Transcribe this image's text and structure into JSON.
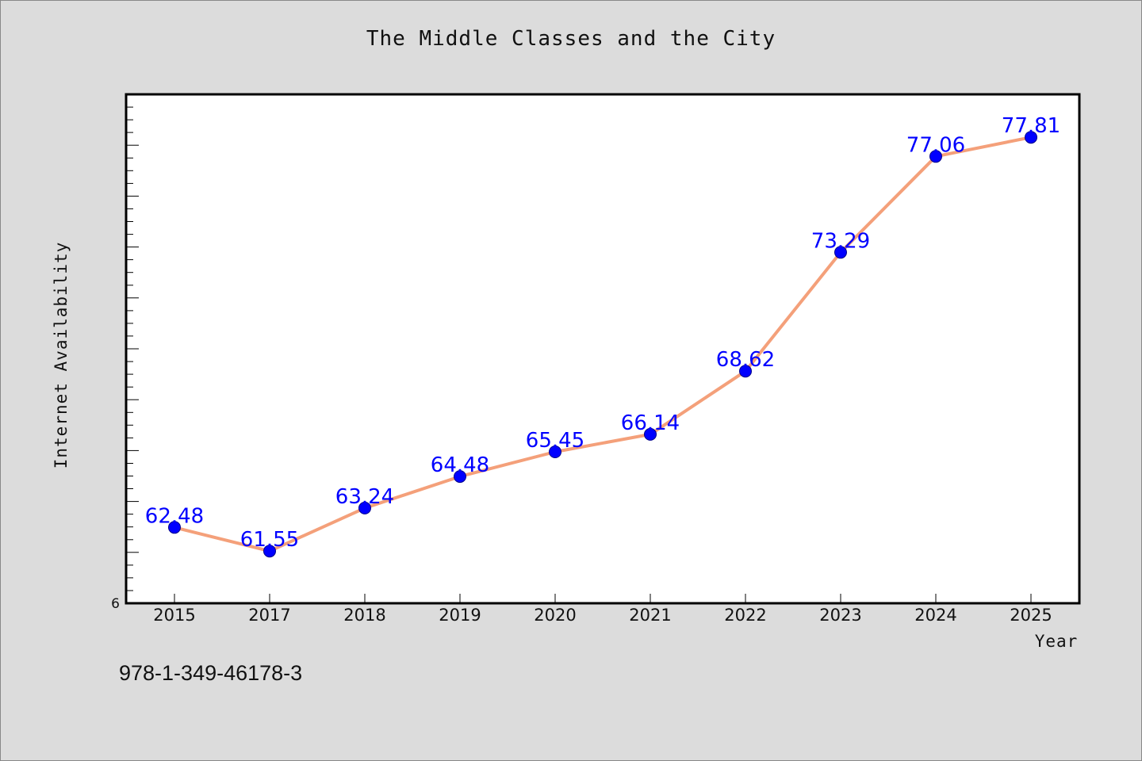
{
  "isbn_text": "978-1-349-46178-3",
  "chart_data": {
    "type": "line",
    "title": "The Middle Classes and the City",
    "xlabel": "Year",
    "ylabel": "Internet Availability",
    "categories": [
      "2015",
      "2017",
      "2018",
      "2019",
      "2020",
      "2021",
      "2022",
      "2023",
      "2024",
      "2025"
    ],
    "series": [
      {
        "values": [
          62.48,
          61.55,
          63.24,
          64.48,
          65.45,
          66.14,
          68.62,
          73.29,
          77.06,
          77.81
        ],
        "labels": [
          "62.48",
          "61.55",
          "63.24",
          "64.48",
          "65.45",
          "66.14",
          "68.62",
          "73.29",
          "77.06",
          "77.81"
        ]
      }
    ],
    "ylim": [
      59.5,
      79.5
    ],
    "y_tick_labels": [
      {
        "value": 59.5,
        "label": "6"
      }
    ],
    "grid": false,
    "colors": {
      "line": "#f4a07a",
      "marker": "#0000ff",
      "label": "#0000ff",
      "plot_background": "#ffffff",
      "figure_background": "#dcdcdc"
    }
  }
}
